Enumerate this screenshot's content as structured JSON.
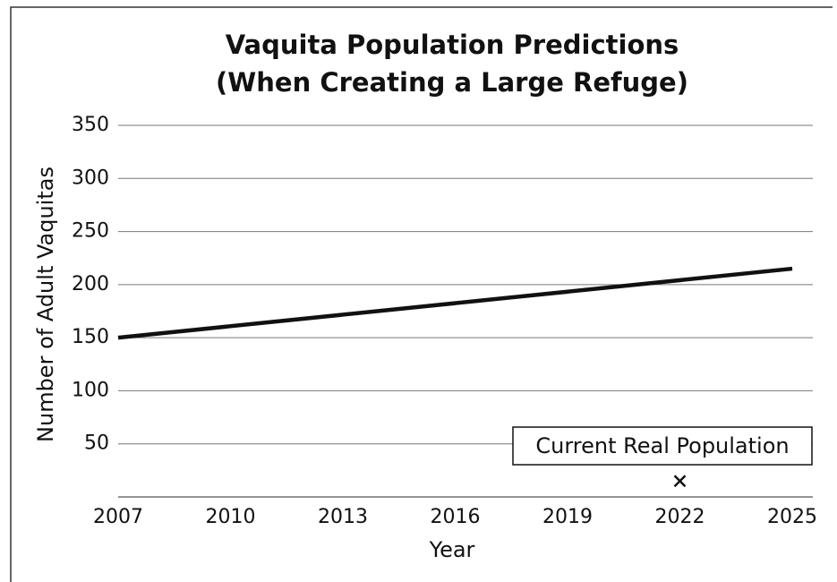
{
  "chart_data": {
    "type": "line",
    "title": [
      "Vaquita Population Predictions",
      "(When Creating a Large Refuge)"
    ],
    "x_label": "Year",
    "y_label": "Number of Adult Vaquitas",
    "x": [
      2007,
      2025
    ],
    "series": [
      {
        "color": "#111111",
        "values": [
          150,
          215
        ]
      }
    ],
    "marker": {
      "label": "Current Real Population",
      "x": 2022,
      "value": 15
    },
    "xlim": [
      2007,
      2025
    ],
    "xticks": [
      2007,
      2010,
      2013,
      2016,
      2019,
      2022,
      2025
    ],
    "ylim": [
      0,
      350
    ],
    "yticks": [
      50,
      100,
      150,
      200,
      250,
      300,
      350
    ],
    "grid": true
  }
}
